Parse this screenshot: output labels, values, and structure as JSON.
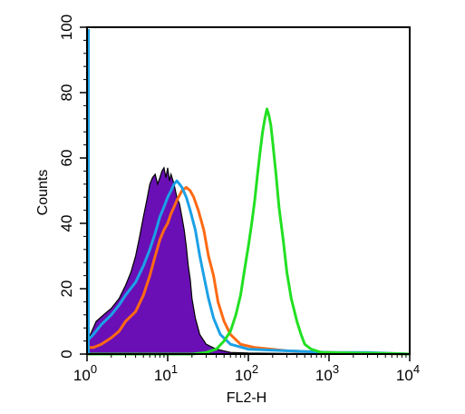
{
  "chart_data": {
    "type": "area",
    "title": "",
    "xlabel": "FL2-H",
    "ylabel": "Counts",
    "xscale": "log",
    "xlim": [
      1,
      10000
    ],
    "ylim": [
      0,
      100
    ],
    "grid": false,
    "x_ticks": [
      {
        "value": 1,
        "base": "10",
        "exp": "0"
      },
      {
        "value": 10,
        "base": "10",
        "exp": "1"
      },
      {
        "value": 100,
        "base": "10",
        "exp": "2"
      },
      {
        "value": 1000,
        "base": "10",
        "exp": "3"
      },
      {
        "value": 10000,
        "base": "10",
        "exp": "4"
      }
    ],
    "y_ticks": [
      {
        "value": 0,
        "label": "0"
      },
      {
        "value": 20,
        "label": "20"
      },
      {
        "value": 40,
        "label": "40"
      },
      {
        "value": 60,
        "label": "60"
      },
      {
        "value": 80,
        "label": "80"
      },
      {
        "value": 100,
        "label": "100"
      }
    ],
    "series": [
      {
        "style": "filled",
        "color": "#6a0fb5",
        "stroke": "#000000",
        "points": [
          [
            1,
            2
          ],
          [
            1.1,
            6
          ],
          [
            1.3,
            10
          ],
          [
            1.6,
            12
          ],
          [
            2,
            14
          ],
          [
            2.5,
            17
          ],
          [
            3,
            21
          ],
          [
            3.5,
            25
          ],
          [
            4,
            30
          ],
          [
            4.5,
            36
          ],
          [
            5,
            42
          ],
          [
            5.5,
            47
          ],
          [
            6,
            52
          ],
          [
            6.5,
            54
          ],
          [
            7,
            55
          ],
          [
            7.5,
            52
          ],
          [
            8,
            54
          ],
          [
            8.5,
            56
          ],
          [
            9,
            57
          ],
          [
            9.5,
            54
          ],
          [
            10,
            57
          ],
          [
            10.5,
            53
          ],
          [
            11,
            55
          ],
          [
            12,
            52
          ],
          [
            13,
            48
          ],
          [
            14,
            46
          ],
          [
            15,
            42
          ],
          [
            16,
            38
          ],
          [
            17,
            33
          ],
          [
            18,
            27
          ],
          [
            19,
            23
          ],
          [
            20,
            17
          ],
          [
            22,
            11
          ],
          [
            25,
            6
          ],
          [
            30,
            3
          ],
          [
            40,
            1.5
          ],
          [
            60,
            0.5
          ],
          [
            100,
            0.3
          ],
          [
            300,
            0.2
          ],
          [
            1000,
            0.1
          ],
          [
            10000,
            0
          ]
        ]
      },
      {
        "style": "line",
        "color": "#ff6a14",
        "points": [
          [
            1,
            2
          ],
          [
            1.2,
            2
          ],
          [
            1.5,
            3
          ],
          [
            2,
            5
          ],
          [
            2.5,
            7
          ],
          [
            3,
            10
          ],
          [
            4,
            13
          ],
          [
            5,
            18
          ],
          [
            6,
            24
          ],
          [
            7,
            30
          ],
          [
            8,
            35
          ],
          [
            9,
            38
          ],
          [
            10,
            40
          ],
          [
            11,
            43
          ],
          [
            12,
            45
          ],
          [
            13,
            47
          ],
          [
            15,
            50
          ],
          [
            17,
            51
          ],
          [
            19,
            50
          ],
          [
            21,
            48
          ],
          [
            24,
            44
          ],
          [
            28,
            38
          ],
          [
            32,
            30
          ],
          [
            37,
            24
          ],
          [
            42,
            16
          ],
          [
            50,
            10
          ],
          [
            60,
            6
          ],
          [
            80,
            3
          ],
          [
            120,
            2
          ],
          [
            300,
            1
          ],
          [
            1000,
            0.5
          ],
          [
            10000,
            0
          ]
        ]
      },
      {
        "style": "line",
        "color": "#1ba1e6",
        "points": [
          [
            1,
            4
          ],
          [
            1.2,
            6
          ],
          [
            1.5,
            9
          ],
          [
            2,
            12
          ],
          [
            2.5,
            15
          ],
          [
            3,
            18
          ],
          [
            4,
            22
          ],
          [
            5,
            27
          ],
          [
            6,
            32
          ],
          [
            7,
            37
          ],
          [
            8,
            42
          ],
          [
            9,
            45
          ],
          [
            10,
            48
          ],
          [
            11,
            50
          ],
          [
            12,
            52
          ],
          [
            13,
            53
          ],
          [
            14,
            52
          ],
          [
            15,
            51
          ],
          [
            17,
            48
          ],
          [
            19,
            44
          ],
          [
            22,
            38
          ],
          [
            25,
            30
          ],
          [
            28,
            24
          ],
          [
            32,
            17
          ],
          [
            37,
            11
          ],
          [
            45,
            6
          ],
          [
            60,
            3
          ],
          [
            100,
            1.5
          ],
          [
            300,
            1
          ],
          [
            1000,
            0.5
          ],
          [
            3000,
            0.5
          ],
          [
            10000,
            0
          ]
        ]
      },
      {
        "style": "line",
        "color": "#22e022",
        "points": [
          [
            1,
            0
          ],
          [
            20,
            0
          ],
          [
            30,
            0.5
          ],
          [
            40,
            1.5
          ],
          [
            50,
            4
          ],
          [
            60,
            7
          ],
          [
            70,
            12
          ],
          [
            80,
            18
          ],
          [
            90,
            26
          ],
          [
            100,
            33
          ],
          [
            110,
            40
          ],
          [
            120,
            47
          ],
          [
            130,
            55
          ],
          [
            140,
            62
          ],
          [
            150,
            68
          ],
          [
            160,
            72
          ],
          [
            170,
            75
          ],
          [
            180,
            73
          ],
          [
            190,
            70
          ],
          [
            200,
            65
          ],
          [
            220,
            55
          ],
          [
            240,
            45
          ],
          [
            270,
            35
          ],
          [
            300,
            25
          ],
          [
            340,
            17
          ],
          [
            400,
            10
          ],
          [
            450,
            6
          ],
          [
            500,
            3
          ],
          [
            600,
            1.5
          ],
          [
            800,
            0.5
          ],
          [
            1000,
            0.5
          ],
          [
            2000,
            0.3
          ],
          [
            5000,
            0.2
          ],
          [
            10000,
            0
          ]
        ]
      }
    ]
  }
}
